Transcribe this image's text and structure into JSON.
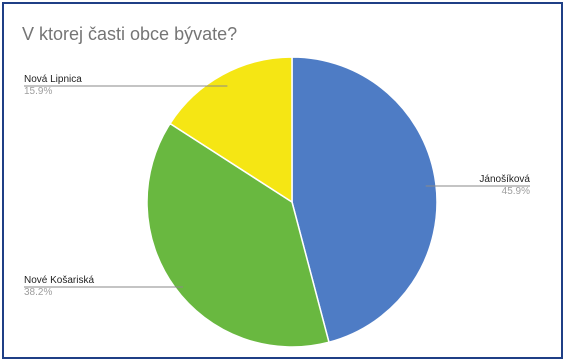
{
  "chart_data": {
    "type": "pie",
    "title": "V ktorej časti obce bývate?",
    "slices": [
      {
        "label": "Jánošíková",
        "value": 45.9,
        "percent_label": "45.9%",
        "color": "#4e7cc5"
      },
      {
        "label": "Nové Košariská",
        "value": 38.2,
        "percent_label": "38.2%",
        "color": "#69b840"
      },
      {
        "label": "Nová Lipnica",
        "value": 15.9,
        "percent_label": "15.9%",
        "color": "#f5e614"
      }
    ],
    "start_angle": "top",
    "direction": "clockwise"
  }
}
